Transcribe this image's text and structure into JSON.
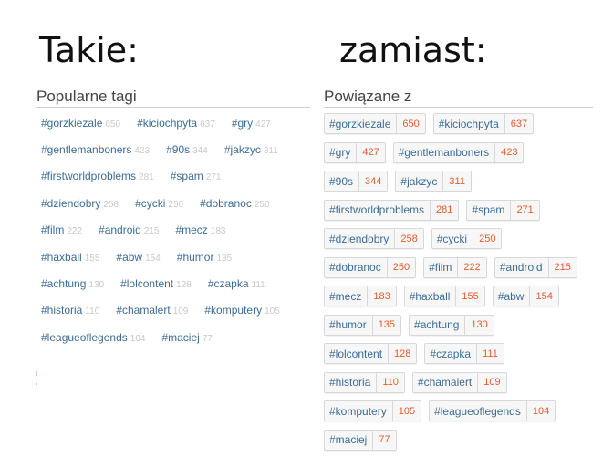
{
  "headings": {
    "left": "Takie:",
    "right": "zamiast:"
  },
  "popular": {
    "title": "Popularne tagi",
    "rows": [
      [
        {
          "name": "#gorzkiezale",
          "count": "650"
        },
        {
          "name": "#kiciochpyta",
          "count": "637"
        },
        {
          "name": "#gry",
          "count": "427"
        }
      ],
      [
        {
          "name": "#gentlemanboners",
          "count": "423"
        },
        {
          "name": "#90s",
          "count": "344"
        },
        {
          "name": "#jakzyc",
          "count": "311"
        }
      ],
      [
        {
          "name": "#firstworldproblems",
          "count": "281"
        },
        {
          "name": "#spam",
          "count": "271"
        }
      ],
      [
        {
          "name": "#dziendobry",
          "count": "258"
        },
        {
          "name": "#cycki",
          "count": "250"
        },
        {
          "name": "#dobranoc",
          "count": "250"
        }
      ],
      [
        {
          "name": "#film",
          "count": "222"
        },
        {
          "name": "#android",
          "count": "215"
        },
        {
          "name": "#mecz",
          "count": "183"
        }
      ],
      [
        {
          "name": "#haxball",
          "count": "155"
        },
        {
          "name": "#abw",
          "count": "154"
        },
        {
          "name": "#humor",
          "count": "135"
        }
      ],
      [
        {
          "name": "#achtung",
          "count": "130"
        },
        {
          "name": "#lolcontent",
          "count": "128"
        },
        {
          "name": "#czapka",
          "count": "111"
        }
      ],
      [
        {
          "name": "#historia",
          "count": "110"
        },
        {
          "name": "#chamalert",
          "count": "109"
        },
        {
          "name": "#komputery",
          "count": "105"
        }
      ],
      [
        {
          "name": "#leagueoflegends",
          "count": "104"
        },
        {
          "name": "#maciej",
          "count": "77"
        }
      ]
    ]
  },
  "related": {
    "title": "Powiązane z",
    "rows": [
      [
        {
          "name": "#gorzkiezale",
          "count": "650"
        },
        {
          "name": "#kiciochpyta",
          "count": "637"
        }
      ],
      [
        {
          "name": "#gry",
          "count": "427"
        },
        {
          "name": "#gentlemanboners",
          "count": "423"
        }
      ],
      [
        {
          "name": "#90s",
          "count": "344"
        },
        {
          "name": "#jakzyc",
          "count": "311"
        }
      ],
      [
        {
          "name": "#firstworldproblems",
          "count": "281"
        },
        {
          "name": "#spam",
          "count": "271"
        }
      ],
      [
        {
          "name": "#dziendobry",
          "count": "258"
        },
        {
          "name": "#cycki",
          "count": "250"
        }
      ],
      [
        {
          "name": "#dobranoc",
          "count": "250"
        },
        {
          "name": "#film",
          "count": "222"
        },
        {
          "name": "#android",
          "count": "215"
        }
      ],
      [
        {
          "name": "#mecz",
          "count": "183"
        },
        {
          "name": "#haxball",
          "count": "155"
        },
        {
          "name": "#abw",
          "count": "154"
        }
      ],
      [
        {
          "name": "#humor",
          "count": "135"
        },
        {
          "name": "#achtung",
          "count": "130"
        }
      ],
      [
        {
          "name": "#lolcontent",
          "count": "128"
        },
        {
          "name": "#czapka",
          "count": "111"
        }
      ],
      [
        {
          "name": "#historia",
          "count": "110"
        },
        {
          "name": "#chamalert",
          "count": "109"
        }
      ],
      [
        {
          "name": "#komputery",
          "count": "105"
        },
        {
          "name": "#leagueoflegends",
          "count": "104"
        }
      ],
      [
        {
          "name": "#maciej",
          "count": "77"
        }
      ]
    ]
  },
  "colors": {
    "tag_link": "#3b6c98",
    "popular_count": "#c9c9c9",
    "related_count": "#e65a2d"
  }
}
